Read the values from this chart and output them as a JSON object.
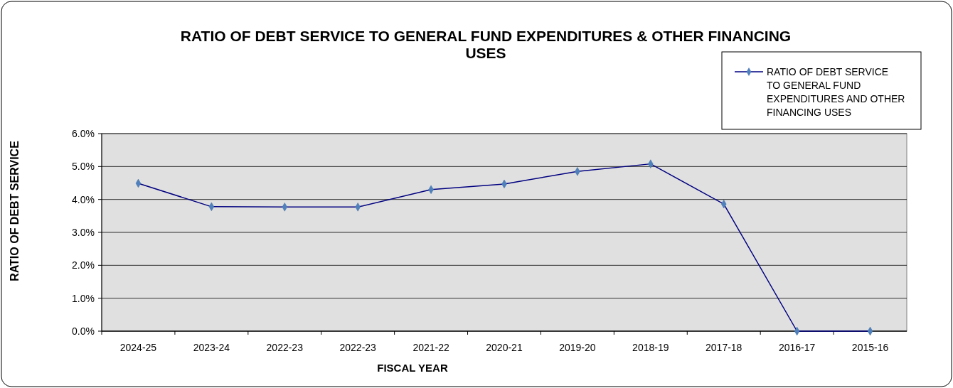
{
  "chart_data": {
    "type": "line",
    "title": "RATIO OF DEBT SERVICE TO GENERAL FUND EXPENDITURES & OTHER FINANCING USES",
    "xlabel": "FISCAL YEAR",
    "ylabel": "RATIO OF DEBT SERVICE",
    "categories": [
      "2024-25",
      "2023-24",
      "2022-23",
      "2022-23",
      "2021-22",
      "2020-21",
      "2019-20",
      "2018-19",
      "2017-18",
      "2016-17",
      "2015-16"
    ],
    "series": [
      {
        "name": "RATIO OF DEBT SERVICE TO GENERAL FUND EXPENDITURES AND OTHER FINANCING USES",
        "color": "#000080",
        "values": [
          4.49,
          3.78,
          3.77,
          3.77,
          4.3,
          4.47,
          4.85,
          5.08,
          3.86,
          0,
          0
        ]
      }
    ],
    "ylim": [
      0,
      6
    ],
    "yticks": [
      {
        "value": 0,
        "label": "0.0%"
      },
      {
        "value": 1,
        "label": "1.0%"
      },
      {
        "value": 2,
        "label": "2.0%"
      },
      {
        "value": 3,
        "label": "3.0%"
      },
      {
        "value": 4,
        "label": "4.0%"
      },
      {
        "value": 5,
        "label": "5.0%"
      },
      {
        "value": 6,
        "label": "6.0%"
      }
    ],
    "grid": "y",
    "legend": "top right",
    "marker": "diamond",
    "line_style": "solid"
  }
}
